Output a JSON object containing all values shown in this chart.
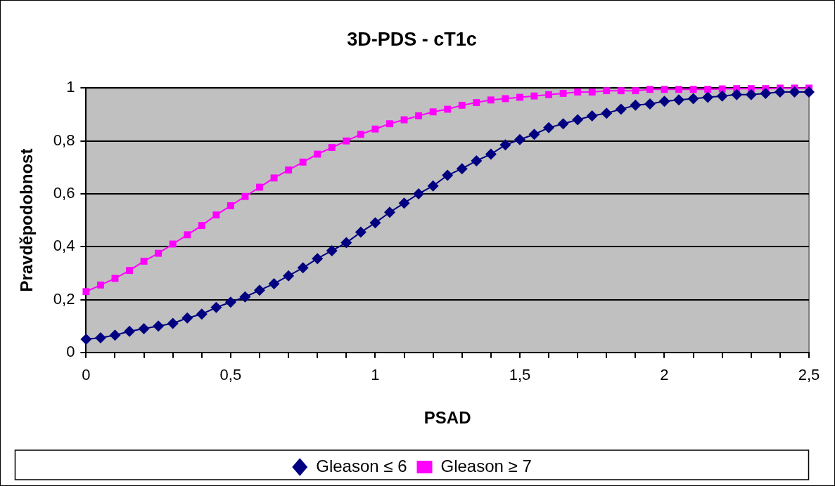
{
  "chart_data": {
    "type": "line",
    "title": "3D-PDS - cT1c",
    "xlabel": "PSAD",
    "ylabel": "Pravděpodobnost",
    "x": [
      0,
      0.05,
      0.1,
      0.15,
      0.2,
      0.25,
      0.3,
      0.35,
      0.4,
      0.45,
      0.5,
      0.55,
      0.6,
      0.65,
      0.7,
      0.75,
      0.8,
      0.85,
      0.9,
      0.95,
      1,
      1.05,
      1.1,
      1.15,
      1.2,
      1.25,
      1.3,
      1.35,
      1.4,
      1.45,
      1.5,
      1.55,
      1.6,
      1.65,
      1.7,
      1.75,
      1.8,
      1.85,
      1.9,
      1.95,
      2,
      2.05,
      2.1,
      2.15,
      2.2,
      2.25,
      2.3,
      2.35,
      2.4,
      2.45,
      2.5
    ],
    "series": [
      {
        "name": "Gleason ≤ 6",
        "color": "#000080",
        "marker": "diamond",
        "values": [
          0.05,
          0.055,
          0.065,
          0.08,
          0.09,
          0.1,
          0.11,
          0.13,
          0.145,
          0.17,
          0.19,
          0.21,
          0.235,
          0.26,
          0.29,
          0.32,
          0.355,
          0.385,
          0.415,
          0.455,
          0.49,
          0.53,
          0.565,
          0.6,
          0.63,
          0.67,
          0.695,
          0.725,
          0.75,
          0.785,
          0.805,
          0.825,
          0.85,
          0.865,
          0.88,
          0.895,
          0.905,
          0.92,
          0.935,
          0.94,
          0.95,
          0.955,
          0.96,
          0.965,
          0.97,
          0.975,
          0.975,
          0.98,
          0.985,
          0.985,
          0.985
        ]
      },
      {
        "name": "Gleason ≥ 7",
        "color": "#ff00ff",
        "marker": "square",
        "values": [
          0.23,
          0.255,
          0.28,
          0.31,
          0.345,
          0.375,
          0.41,
          0.445,
          0.48,
          0.52,
          0.555,
          0.59,
          0.625,
          0.66,
          0.69,
          0.72,
          0.75,
          0.775,
          0.8,
          0.825,
          0.845,
          0.865,
          0.88,
          0.895,
          0.91,
          0.92,
          0.935,
          0.945,
          0.955,
          0.96,
          0.965,
          0.97,
          0.975,
          0.98,
          0.985,
          0.985,
          0.99,
          0.99,
          0.99,
          0.995,
          0.995,
          0.995,
          0.995,
          0.995,
          0.997,
          0.998,
          0.998,
          0.998,
          1,
          1,
          1
        ]
      }
    ],
    "xlim": [
      0,
      2.5
    ],
    "xticks": [
      0,
      {
        "value": 0.1,
        "label": null
      },
      {
        "value": 0.2,
        "label": null
      },
      {
        "value": 0.3,
        "label": null
      },
      {
        "value": 0.4,
        "label": null
      },
      {
        "value": 0.5,
        "label": "0,5"
      },
      {
        "value": 0.6,
        "label": null
      },
      {
        "value": 0.7,
        "label": null
      },
      {
        "value": 0.8,
        "label": null
      },
      {
        "value": 0.9,
        "label": null
      },
      1,
      {
        "value": 1.1,
        "label": null
      },
      {
        "value": 1.2,
        "label": null
      },
      {
        "value": 1.3,
        "label": null
      },
      {
        "value": 1.4,
        "label": null
      },
      {
        "value": 1.5,
        "label": "1,5"
      },
      {
        "value": 1.6,
        "label": null
      },
      {
        "value": 1.7,
        "label": null
      },
      {
        "value": 1.8,
        "label": null
      },
      {
        "value": 1.9,
        "label": null
      },
      2,
      {
        "value": 2.1,
        "label": null
      },
      {
        "value": 2.2,
        "label": null
      },
      {
        "value": 2.3,
        "label": null
      },
      {
        "value": 2.4,
        "label": null
      },
      {
        "value": 2.5,
        "label": "2,5"
      }
    ],
    "ylim": [
      0,
      1
    ],
    "yticks": [
      0,
      {
        "value": 0.2,
        "label": "0,2"
      },
      {
        "value": 0.4,
        "label": "0,4"
      },
      {
        "value": 0.6,
        "label": "0,6"
      },
      {
        "value": 0.8,
        "label": "0,8"
      },
      1
    ],
    "grid": "y",
    "legend": "bottom",
    "line_style": "solid"
  }
}
